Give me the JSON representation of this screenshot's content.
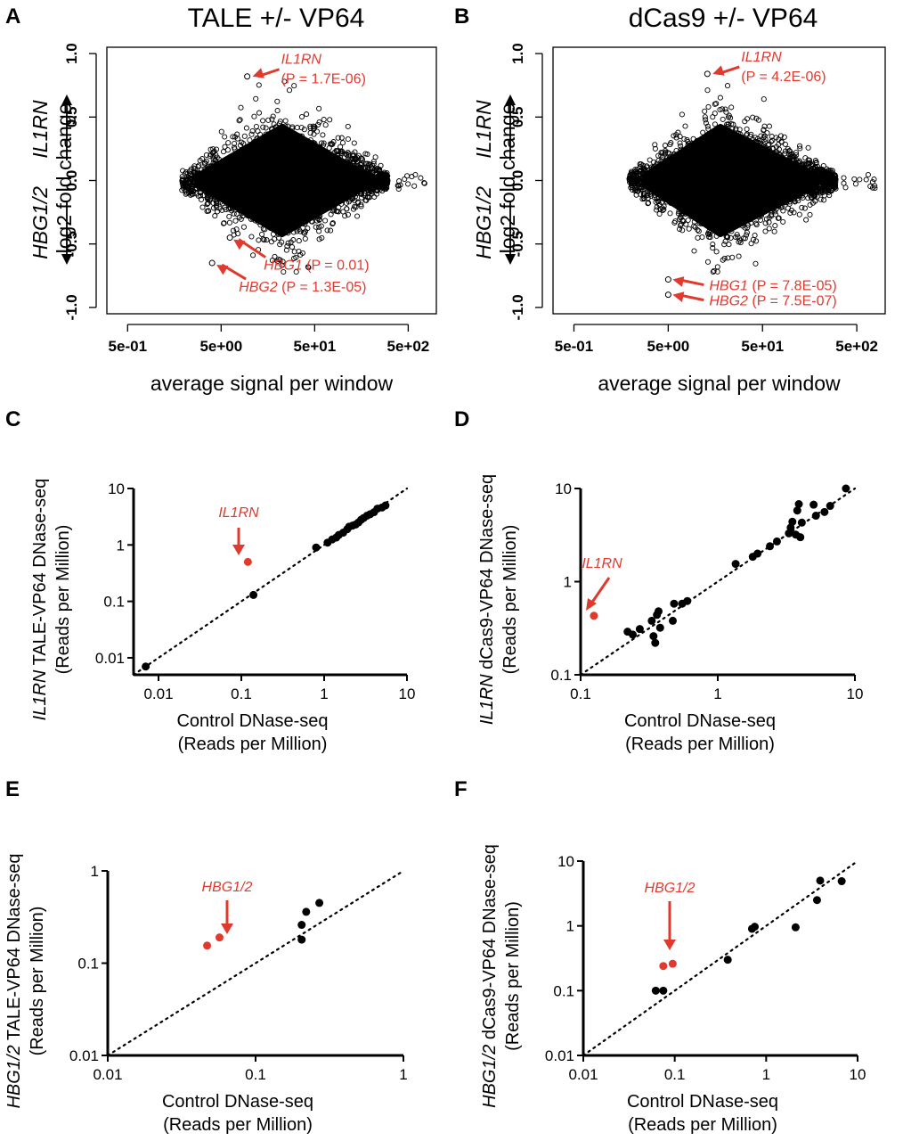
{
  "colors": {
    "highlight": "#e03a2f",
    "points": "#000000",
    "axis": "#000000"
  },
  "chart_data": [
    {
      "panel": "A",
      "type": "scatter",
      "title": "TALE +/- VP64",
      "xlabel": "average signal per window",
      "ylabel_main": "log2 fold change",
      "ylabel_up": "IL1RN",
      "ylabel_down": "HBG1/2",
      "xscale": "log",
      "xlim": [
        0.3,
        1000
      ],
      "ylim": [
        -1.05,
        1.05
      ],
      "xticks": [
        "5e-01",
        "5e+00",
        "5e+01",
        "5e+02"
      ],
      "xtick_values": [
        0.5,
        5,
        50,
        500
      ],
      "yticks": [
        "1.0",
        "0.5",
        "0.0",
        "-0.5",
        "-1.0"
      ],
      "ytick_values": [
        1.0,
        0.5,
        0.0,
        -0.5,
        -1.0
      ],
      "annotations": [
        {
          "gene": "IL1RN",
          "pvalue": "(P = 1.7E-06)",
          "x": 9.5,
          "y": 0.82
        },
        {
          "gene": "HBG1",
          "pvalue": "(P = 0.01)",
          "x": 6.2,
          "y": -0.45
        },
        {
          "gene": "HBG2",
          "pvalue": "(P = 1.3E-05)",
          "x": 4.0,
          "y": -0.65
        }
      ]
    },
    {
      "panel": "B",
      "type": "scatter",
      "title": "dCas9 +/- VP64",
      "xlabel": "average signal per window",
      "ylabel_main": "log2 fold change",
      "ylabel_up": "IL1RN",
      "ylabel_down": "HBG1/2",
      "xscale": "log",
      "xlim": [
        0.3,
        1000
      ],
      "ylim": [
        -1.05,
        1.05
      ],
      "xticks": [
        "5e-01",
        "5e+00",
        "5e+01",
        "5e+02"
      ],
      "xtick_values": [
        0.5,
        5,
        50,
        500
      ],
      "yticks": [
        "1.0",
        "0.5",
        "0.0",
        "-0.5",
        "-1.0"
      ],
      "ytick_values": [
        1.0,
        0.5,
        0.0,
        -0.5,
        -1.0
      ],
      "annotations": [
        {
          "gene": "IL1RN",
          "pvalue": "(P = 4.2E-06)",
          "x": 13.0,
          "y": 0.84
        },
        {
          "gene": "HBG1",
          "pvalue": "(P = 7.8E-05)",
          "x": 5.0,
          "y": -0.78
        },
        {
          "gene": "HBG2",
          "pvalue": "(P = 7.5E-07)",
          "x": 5.0,
          "y": -0.9
        }
      ]
    },
    {
      "panel": "C",
      "type": "scatter",
      "xlabel": "Control DNase-seq",
      "xlabel2": "(Reads per Million)",
      "ylabel_gene": "IL1RN",
      "ylabel_rest": " TALE-VP64 DNase-seq",
      "ylabel2": "(Reads per Million)",
      "xscale": "log",
      "yscale": "log",
      "xlim": [
        0.005,
        10
      ],
      "ylim": [
        0.005,
        10
      ],
      "xticks": [
        "0.01",
        "0.1",
        "1",
        "10"
      ],
      "xtick_values": [
        0.01,
        0.1,
        1,
        10
      ],
      "yticks": [
        "0.01",
        "0.1",
        "1",
        "10"
      ],
      "ytick_values": [
        0.01,
        0.1,
        1,
        10
      ],
      "diagonal": true,
      "highlight_label": "IL1RN",
      "highlight_points": [
        [
          0.12,
          0.5
        ]
      ],
      "points": [
        [
          0.007,
          0.007
        ],
        [
          0.14,
          0.13
        ],
        [
          0.8,
          0.9
        ],
        [
          1.1,
          1.1
        ],
        [
          1.25,
          1.25
        ],
        [
          1.4,
          1.35
        ],
        [
          1.5,
          1.5
        ],
        [
          1.7,
          1.65
        ],
        [
          1.9,
          1.9
        ],
        [
          2.0,
          2.1
        ],
        [
          2.2,
          2.2
        ],
        [
          2.4,
          2.3
        ],
        [
          2.6,
          2.5
        ],
        [
          2.8,
          2.8
        ],
        [
          3.0,
          3.0
        ],
        [
          3.3,
          3.3
        ],
        [
          3.6,
          3.5
        ],
        [
          4.0,
          3.8
        ],
        [
          4.4,
          4.4
        ],
        [
          5.0,
          4.6
        ],
        [
          5.5,
          5.0
        ]
      ]
    },
    {
      "panel": "D",
      "type": "scatter",
      "xlabel": "Control DNase-seq",
      "xlabel2": "(Reads per Million)",
      "ylabel_gene": "IL1RN",
      "ylabel_rest": " dCas9-VP64 DNase-seq",
      "ylabel2": "(Reads per Million)",
      "xscale": "log",
      "yscale": "log",
      "xlim": [
        0.1,
        10
      ],
      "ylim": [
        0.1,
        10
      ],
      "xticks": [
        "0.1",
        "1",
        "10"
      ],
      "xtick_values": [
        0.1,
        1,
        10
      ],
      "yticks": [
        "0.1",
        "1",
        "10"
      ],
      "ytick_values": [
        0.1,
        1,
        10
      ],
      "diagonal": true,
      "highlight_label": "IL1RN",
      "highlight_points": [
        [
          0.125,
          0.43
        ]
      ],
      "points": [
        [
          0.22,
          0.29
        ],
        [
          0.24,
          0.27
        ],
        [
          0.27,
          0.31
        ],
        [
          0.33,
          0.38
        ],
        [
          0.34,
          0.26
        ],
        [
          0.35,
          0.22
        ],
        [
          0.36,
          0.44
        ],
        [
          0.37,
          0.48
        ],
        [
          0.38,
          0.32
        ],
        [
          0.47,
          0.38
        ],
        [
          0.48,
          0.58
        ],
        [
          0.55,
          0.58
        ],
        [
          0.6,
          0.62
        ],
        [
          1.35,
          1.55
        ],
        [
          1.8,
          1.85
        ],
        [
          1.95,
          2.0
        ],
        [
          2.4,
          2.4
        ],
        [
          2.7,
          2.7
        ],
        [
          3.3,
          3.3
        ],
        [
          3.4,
          3.8
        ],
        [
          3.5,
          4.4
        ],
        [
          3.7,
          3.2
        ],
        [
          3.8,
          5.8
        ],
        [
          3.9,
          6.8
        ],
        [
          4.0,
          3.0
        ],
        [
          4.1,
          4.3
        ],
        [
          5.0,
          6.7
        ],
        [
          5.2,
          5.1
        ],
        [
          6.0,
          5.6
        ],
        [
          6.6,
          6.5
        ],
        [
          8.6,
          10
        ]
      ]
    },
    {
      "panel": "E",
      "type": "scatter",
      "xlabel": "Control DNase-seq",
      "xlabel2": "(Reads per Million)",
      "ylabel_gene": "HBG1/2",
      "ylabel_rest": " TALE-VP64 DNase-seq",
      "ylabel2": "(Reads per Million)",
      "xscale": "log",
      "yscale": "log",
      "xlim": [
        0.01,
        1
      ],
      "ylim": [
        0.01,
        1
      ],
      "xticks": [
        "0.01",
        "0.1",
        "1"
      ],
      "xtick_values": [
        0.01,
        0.1,
        1
      ],
      "yticks": [
        "0.01",
        "0.1",
        "1"
      ],
      "ytick_values": [
        0.01,
        0.1,
        1
      ],
      "diagonal": true,
      "highlight_label": "HBG1/2",
      "highlight_points": [
        [
          0.047,
          0.155
        ],
        [
          0.057,
          0.19
        ]
      ],
      "points": [
        [
          0.205,
          0.18
        ],
        [
          0.205,
          0.26
        ],
        [
          0.22,
          0.36
        ],
        [
          0.27,
          0.45
        ]
      ]
    },
    {
      "panel": "F",
      "type": "scatter",
      "xlabel": "Control DNase-seq",
      "xlabel2": "(Reads per Million)",
      "ylabel_gene": "HBG1/2",
      "ylabel_rest": " dCas9-VP64 DNase-seq",
      "ylabel2": "(Reads per Million)",
      "xscale": "log",
      "yscale": "log",
      "xlim": [
        0.01,
        10
      ],
      "ylim": [
        0.01,
        10
      ],
      "xticks": [
        "0.01",
        "0.1",
        "1",
        "10"
      ],
      "xtick_values": [
        0.01,
        0.1,
        1,
        10
      ],
      "yticks": [
        "0.01",
        "0.1",
        "1",
        "10"
      ],
      "ytick_values": [
        0.01,
        0.1,
        1,
        10
      ],
      "diagonal": true,
      "highlight_label": "HBG1/2",
      "highlight_points": [
        [
          0.075,
          0.24
        ],
        [
          0.095,
          0.26
        ]
      ],
      "points": [
        [
          0.062,
          0.1
        ],
        [
          0.075,
          0.1
        ],
        [
          0.38,
          0.3
        ],
        [
          0.7,
          0.9
        ],
        [
          0.75,
          0.97
        ],
        [
          2.1,
          0.95
        ],
        [
          3.6,
          2.5
        ],
        [
          3.9,
          5.0
        ],
        [
          6.7,
          4.9
        ]
      ]
    }
  ]
}
